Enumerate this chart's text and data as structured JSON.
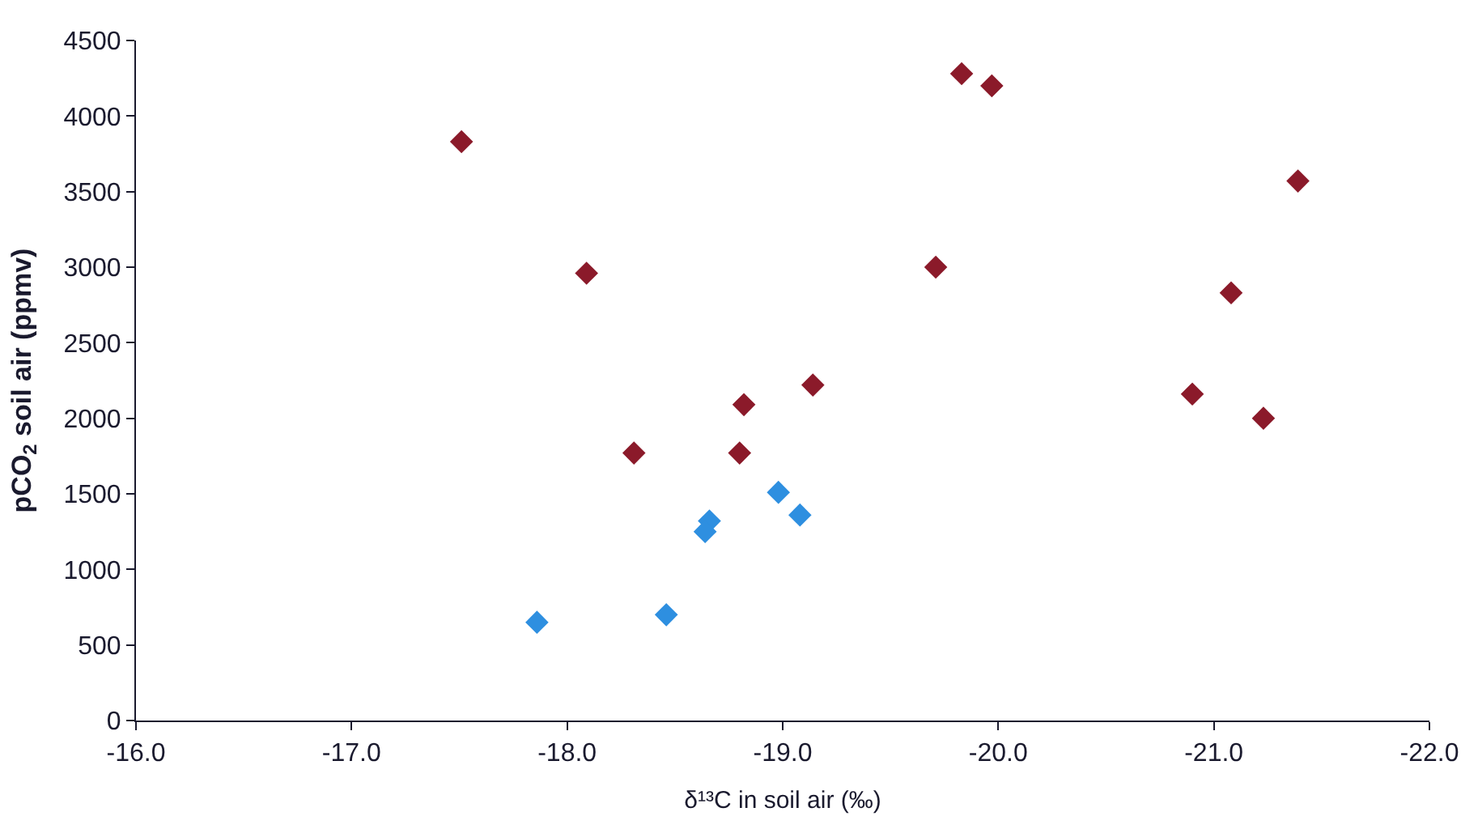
{
  "chart_data": {
    "type": "scatter",
    "xlabel": "δ¹³C in soil air (‰)",
    "ylabel": "pCO$_{2}$ soil air (ppmv)",
    "xlim": [
      -16,
      -22
    ],
    "xticks": [
      {
        "value": -16,
        "label": "-16.0"
      },
      {
        "value": -17,
        "label": "-17.0"
      },
      {
        "value": -18,
        "label": "-18.0"
      },
      {
        "value": -19,
        "label": "-19.0"
      },
      {
        "value": -20,
        "label": "-20.0"
      },
      {
        "value": -21,
        "label": "-21.0"
      },
      {
        "value": -22,
        "label": "-22.0"
      }
    ],
    "ylim": [
      0,
      4500
    ],
    "yticks": [
      0,
      500,
      1000,
      1500,
      2000,
      2500,
      3000,
      3500,
      4000,
      4500
    ],
    "marker": "diamond",
    "series": [
      {
        "color": "#8b1a2a",
        "x": [
          -17.51,
          -18.09,
          -18.31,
          -19.83,
          -19.97,
          -21.39,
          -19.71,
          -21.08,
          -19.14,
          -18.82,
          -18.8,
          -20.9,
          -21.23
        ],
        "values": [
          3830,
          2960,
          1770,
          4280,
          4200,
          3570,
          3000,
          2830,
          2220,
          2090,
          1770,
          2160,
          2000
        ]
      },
      {
        "color": "#2e8fe0",
        "x": [
          -17.86,
          -18.46,
          -18.98,
          -19.08,
          -18.66,
          -18.64
        ],
        "values": [
          650,
          700,
          1510,
          1360,
          1320,
          1250
        ]
      }
    ]
  }
}
